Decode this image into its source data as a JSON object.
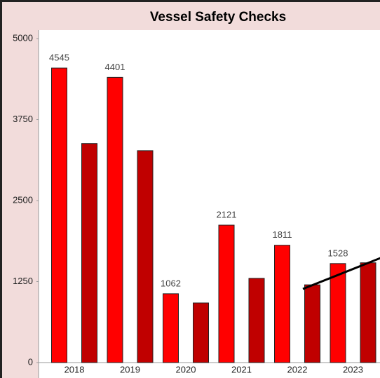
{
  "chart_data": {
    "type": "bar",
    "title": "Vessel Safety Checks",
    "categories": [
      "2018",
      "2019",
      "2020",
      "2021",
      "2022",
      "2023"
    ],
    "series": [
      {
        "color": "#ff0000",
        "values": [
          4545,
          4401,
          1062,
          2121,
          1811,
          1528
        ],
        "data_labels": true
      },
      {
        "color": "#c00000",
        "values": [
          3380,
          3270,
          920,
          1300,
          1200,
          1540
        ],
        "data_labels": false
      }
    ],
    "ylim": [
      0,
      5000
    ],
    "yticks": [
      0,
      1250,
      2500,
      3750,
      5000
    ],
    "grid": false
  }
}
